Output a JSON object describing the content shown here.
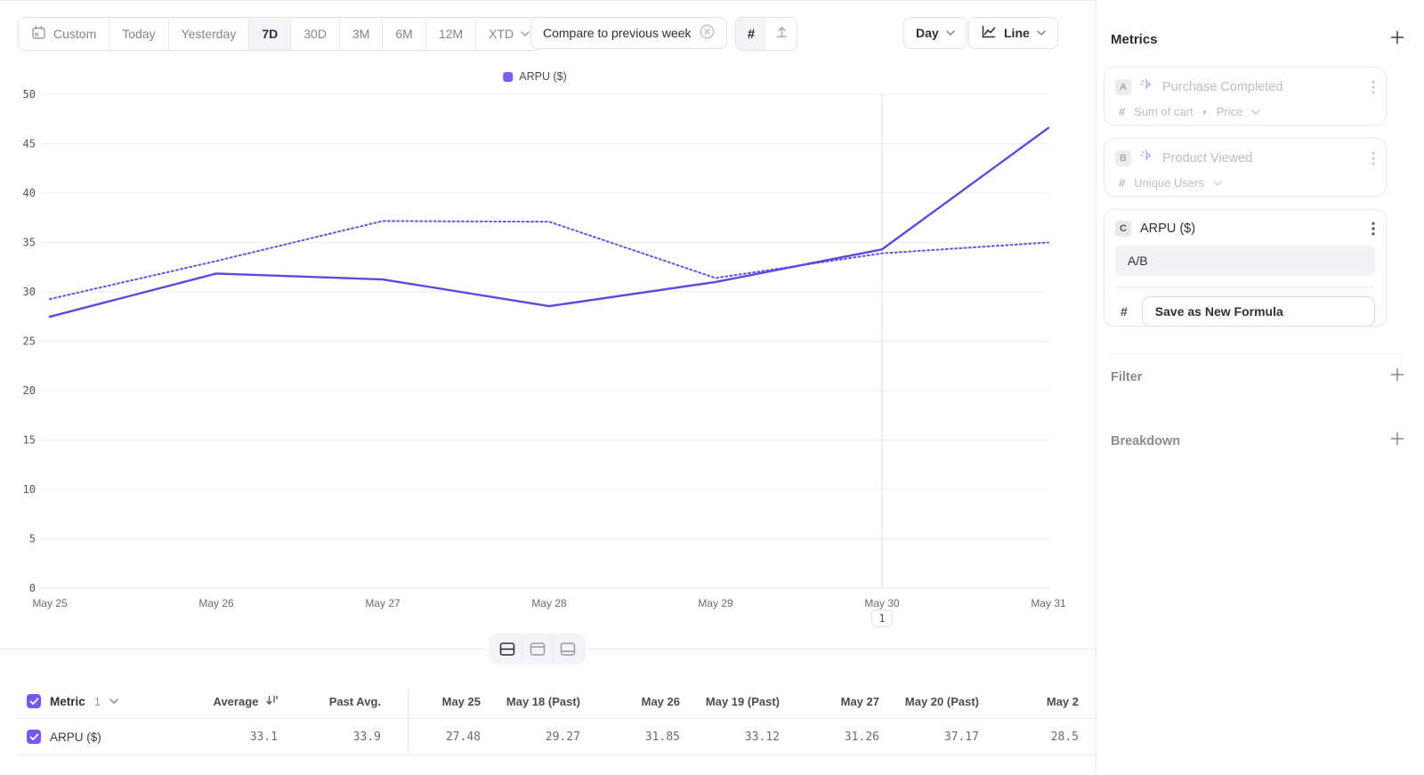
{
  "toolbar": {
    "date_ranges": [
      {
        "label": "Custom"
      },
      {
        "label": "Today"
      },
      {
        "label": "Yesterday"
      },
      {
        "label": "7D"
      },
      {
        "label": "30D"
      },
      {
        "label": "3M"
      },
      {
        "label": "6M"
      },
      {
        "label": "12M"
      },
      {
        "label": "XTD"
      }
    ],
    "selected_range": "7D",
    "compare_chip_label": "Compare to previous week",
    "hash_symbol": "#",
    "granularity_label": "Day",
    "chart_type_label": "Line"
  },
  "chart": {
    "legend_label": "ARPU ($)",
    "hover_marker_label": "1"
  },
  "chart_data": {
    "type": "line",
    "title": "",
    "categories": [
      "May 25",
      "May 26",
      "May 27",
      "May 28",
      "May 29",
      "May 30",
      "May 31"
    ],
    "series": [
      {
        "name": "ARPU ($)",
        "style": "solid",
        "color": "#5b49e0",
        "values": [
          27.48,
          31.85,
          31.26,
          28.55,
          31.0,
          34.3,
          46.6
        ]
      },
      {
        "name": "ARPU ($) previous week",
        "style": "dotted",
        "color": "#6253e6",
        "values": [
          29.27,
          33.12,
          37.17,
          37.1,
          31.4,
          33.9,
          35.0
        ]
      }
    ],
    "xlabel": "",
    "ylabel": "",
    "ylim": [
      0,
      50
    ],
    "ytick_step": 5,
    "grid": "horizontal",
    "legend_position": "top-center",
    "hover_line_at": "May 30"
  },
  "table": {
    "metric_label": "Metric",
    "metric_count": "1",
    "columns": [
      "Average",
      "Past Avg.",
      "May 25",
      "May 18 (Past)",
      "May 26",
      "May 19 (Past)",
      "May 27",
      "May 20 (Past)",
      "May 2"
    ],
    "rows": [
      {
        "label": "ARPU ($)",
        "values": [
          "33.1",
          "33.9",
          "27.48",
          "29.27",
          "31.85",
          "33.12",
          "31.26",
          "37.17",
          "28.5"
        ]
      }
    ]
  },
  "sidebar": {
    "metrics_title": "Metrics",
    "hash_symbol": "#",
    "cards": [
      {
        "id": "A",
        "title": "Purchase Completed",
        "measure": "Sum of cart",
        "measure_property": "Price",
        "state": "inactive"
      },
      {
        "id": "B",
        "title": "Product Viewed",
        "measure": "Unique Users",
        "state": "inactive"
      },
      {
        "id": "C",
        "title": "ARPU ($)",
        "formula": "A/B",
        "action_label": "Save as New Formula",
        "state": "active"
      }
    ],
    "filter_title": "Filter",
    "breakdown_title": "Breakdown"
  },
  "colors": {
    "accent_purple": "#7856ff",
    "legend_swatch": "#7c5cf7",
    "line_solid": "#5b49e0",
    "line_dotted": "#6253e6",
    "grid_line": "#ededf0",
    "hover_line": "#dcdce1"
  }
}
